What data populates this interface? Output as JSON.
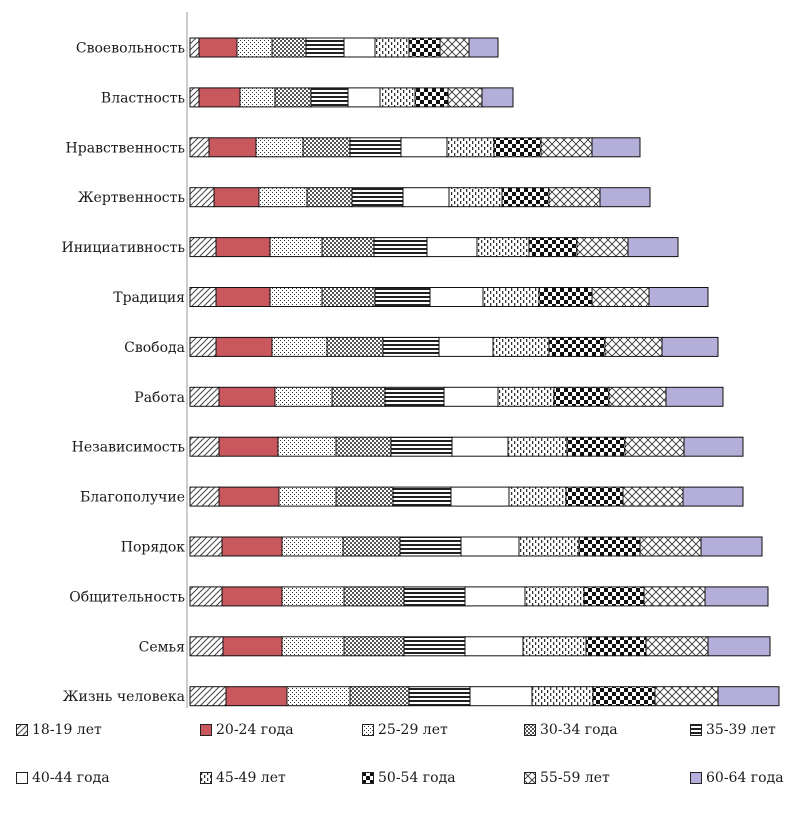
{
  "chart_data": {
    "type": "bar",
    "orientation": "horizontal",
    "stacked": true,
    "title": "",
    "xlabel": "",
    "ylabel": "",
    "grid": false,
    "legend_position": "bottom",
    "categories": [
      "Своевольность",
      "Властность",
      "Нравственность",
      "Жертвенность",
      "Инициативность",
      "Традиция",
      "Свобода",
      "Работа",
      "Независимость",
      "Благополучие",
      "Порядок",
      "Общительность",
      "Семья",
      "Жизнь человека"
    ],
    "series": [
      {
        "name": "18-19 лет",
        "pattern": "diag-light",
        "values": [
          9,
          9,
          19,
          24,
          26,
          26,
          26,
          29,
          29,
          29,
          32,
          32,
          33,
          36
        ]
      },
      {
        "name": "20-24 года",
        "pattern": "solid-red",
        "values": [
          38,
          41,
          47,
          45,
          54,
          54,
          56,
          56,
          59,
          60,
          60,
          60,
          59,
          61
        ]
      },
      {
        "name": "25-29 лет",
        "pattern": "dots",
        "values": [
          35,
          35,
          47,
          48,
          52,
          52,
          55,
          57,
          58,
          57,
          61,
          62,
          62,
          63
        ]
      },
      {
        "name": "30-34 года",
        "pattern": "checker-fine",
        "values": [
          34,
          36,
          47,
          45,
          52,
          53,
          56,
          53,
          55,
          57,
          57,
          60,
          60,
          59
        ]
      },
      {
        "name": "35-39 лет",
        "pattern": "hlines",
        "values": [
          38,
          37,
          51,
          51,
          53,
          55,
          56,
          59,
          61,
          58,
          61,
          61,
          61,
          61
        ]
      },
      {
        "name": "40-44 года",
        "pattern": "white",
        "values": [
          31,
          32,
          46,
          46,
          50,
          53,
          54,
          54,
          56,
          58,
          58,
          60,
          58,
          62
        ]
      },
      {
        "name": "45-49 лет",
        "pattern": "vdots",
        "values": [
          34,
          35,
          47,
          53,
          52,
          56,
          56,
          56,
          59,
          57,
          60,
          59,
          63,
          61
        ]
      },
      {
        "name": "50-54 года",
        "pattern": "checker-bold",
        "values": [
          31,
          33,
          47,
          47,
          48,
          53,
          56,
          55,
          58,
          57,
          61,
          60,
          60,
          62
        ]
      },
      {
        "name": "55-59 лет",
        "pattern": "crosshatch",
        "values": [
          29,
          34,
          51,
          51,
          51,
          57,
          57,
          57,
          59,
          60,
          61,
          61,
          62,
          63
        ]
      },
      {
        "name": "60-64 года",
        "pattern": "solid-lav",
        "values": [
          29,
          31,
          48,
          50,
          50,
          59,
          56,
          57,
          59,
          60,
          61,
          63,
          62,
          61
        ]
      }
    ],
    "colors": {
      "red": "#c8585e",
      "lavender": "#b3afd8",
      "edge": "#111111"
    }
  }
}
